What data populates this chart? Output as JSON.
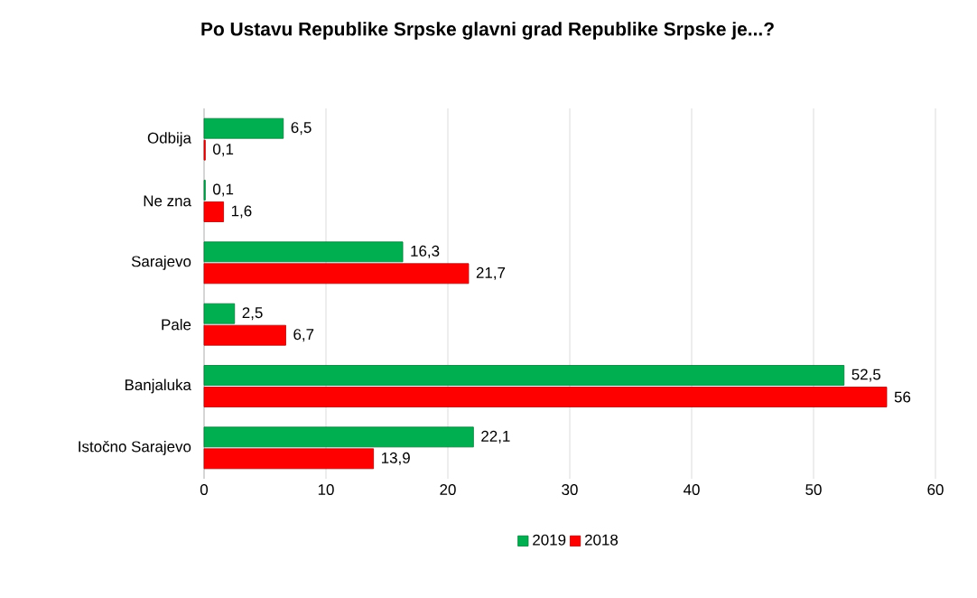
{
  "chart_data": {
    "type": "bar",
    "orientation": "horizontal",
    "title": "Po Ustavu Republike Srpske glavni grad Republike Srpske je...?",
    "categories": [
      "Odbija",
      "Ne zna",
      "Sarajevo",
      "Pale",
      "Banjaluka",
      "Istočno Sarajevo"
    ],
    "series": [
      {
        "name": "2019",
        "color": "#00b050",
        "values": [
          6.5,
          0.1,
          16.3,
          2.5,
          52.5,
          22.1
        ],
        "value_labels": [
          "6,5",
          "0,1",
          "16,3",
          "2,5",
          "52,5",
          "22,1"
        ]
      },
      {
        "name": "2018",
        "color": "#ff0000",
        "values": [
          0.1,
          1.6,
          21.7,
          6.7,
          56,
          13.9
        ],
        "value_labels": [
          "0,1",
          "1,6",
          "21,7",
          "6,7",
          "56",
          "13,9"
        ]
      }
    ],
    "xlim": [
      0,
      60
    ],
    "xticks": [
      0,
      10,
      20,
      30,
      40,
      50,
      60
    ],
    "grid": "x",
    "legend": "bottom"
  }
}
